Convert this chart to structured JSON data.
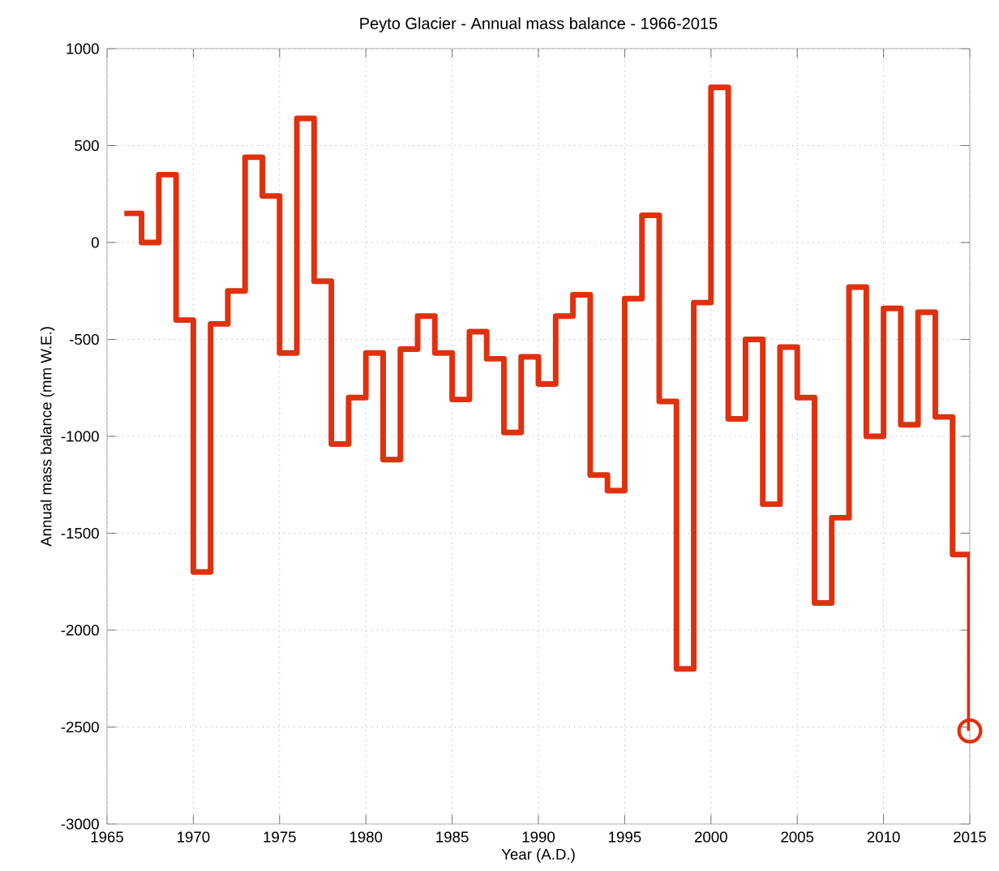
{
  "chart_data": {
    "type": "step",
    "title": "Peyto Glacier - Annual mass balance - 1966-2015",
    "xlabel": "Year (A.D.)",
    "ylabel": "Annual mass balance (mm W.E.)",
    "xlim": [
      1965,
      2015
    ],
    "xticks": [
      1965,
      1970,
      1975,
      1980,
      1985,
      1990,
      1995,
      2000,
      2005,
      2010,
      2015
    ],
    "ylim": [
      -3000,
      1000
    ],
    "yticks": [
      -3000,
      -2500,
      -2000,
      -1500,
      -1000,
      -500,
      0,
      500,
      1000
    ],
    "grid": true,
    "series": [
      {
        "color": "#e0300e",
        "marker": "none",
        "line_style": "solid",
        "x": [
          1966,
          1967,
          1968,
          1969,
          1970,
          1971,
          1972,
          1973,
          1974,
          1975,
          1976,
          1977,
          1978,
          1979,
          1980,
          1981,
          1982,
          1983,
          1984,
          1985,
          1986,
          1987,
          1988,
          1989,
          1990,
          1991,
          1992,
          1993,
          1994,
          1995,
          1996,
          1997,
          1998,
          1999,
          2000,
          2001,
          2002,
          2003,
          2004,
          2005,
          2006,
          2007,
          2008,
          2009,
          2010,
          2011,
          2012,
          2013,
          2014,
          2015
        ],
        "values": [
          150,
          0,
          350,
          -400,
          -1700,
          -420,
          -250,
          440,
          240,
          -570,
          640,
          -200,
          -1040,
          -800,
          -570,
          -1120,
          -550,
          -380,
          -570,
          -810,
          -460,
          -600,
          -980,
          -590,
          -730,
          -380,
          -270,
          -1200,
          -1280,
          -290,
          140,
          -820,
          -2200,
          -310,
          800,
          -910,
          -500,
          -1350,
          -540,
          -800,
          -1860,
          -1420,
          -230,
          -1000,
          -340,
          -940,
          -360,
          -900,
          -1610,
          -2520
        ]
      },
      {
        "type": "scatter",
        "color": "#e0300e",
        "marker": "circle",
        "x": [
          2015
        ],
        "values": [
          -2520
        ]
      }
    ]
  }
}
